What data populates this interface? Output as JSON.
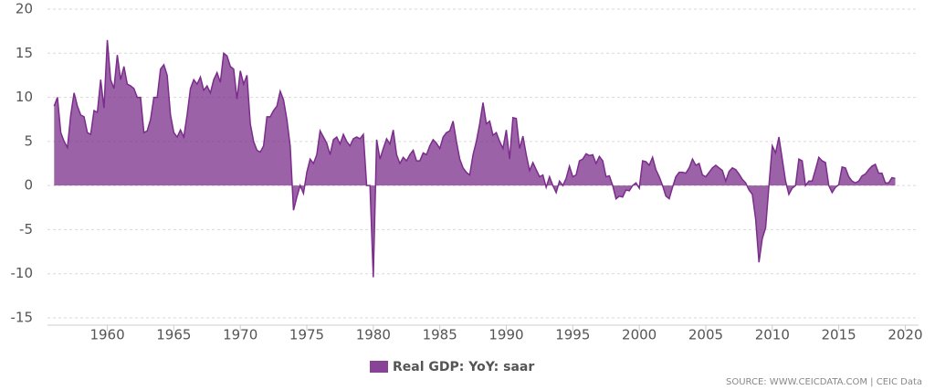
{
  "chart_data": {
    "type": "area",
    "x": [
      1956,
      1956.25,
      1956.5,
      1956.75,
      1957,
      1957.25,
      1957.5,
      1957.75,
      1958,
      1958.25,
      1958.5,
      1958.75,
      1959,
      1959.25,
      1959.5,
      1959.75,
      1960,
      1960.25,
      1960.5,
      1960.75,
      1961,
      1961.25,
      1961.5,
      1961.75,
      1962,
      1962.25,
      1962.5,
      1962.75,
      1963,
      1963.25,
      1963.5,
      1963.75,
      1964,
      1964.25,
      1964.5,
      1964.75,
      1965,
      1965.25,
      1965.5,
      1965.75,
      1966,
      1966.25,
      1966.5,
      1966.75,
      1967,
      1967.25,
      1967.5,
      1967.75,
      1968,
      1968.25,
      1968.5,
      1968.75,
      1969,
      1969.25,
      1969.5,
      1969.75,
      1970,
      1970.25,
      1970.5,
      1970.75,
      1971,
      1971.25,
      1971.5,
      1971.75,
      1972,
      1972.25,
      1972.5,
      1972.75,
      1973,
      1973.25,
      1973.5,
      1973.75,
      1974,
      1974.25,
      1974.5,
      1974.75,
      1975,
      1975.25,
      1975.5,
      1975.75,
      1976,
      1976.25,
      1976.5,
      1976.75,
      1977,
      1977.25,
      1977.5,
      1977.75,
      1978,
      1978.25,
      1978.5,
      1978.75,
      1979,
      1979.25,
      1979.5,
      1979.75,
      1980,
      1980.25,
      1980.5,
      1980.75,
      1981,
      1981.25,
      1981.5,
      1981.75,
      1982,
      1982.25,
      1982.5,
      1982.75,
      1983,
      1983.25,
      1983.5,
      1983.75,
      1984,
      1984.25,
      1984.5,
      1984.75,
      1985,
      1985.25,
      1985.5,
      1985.75,
      1986,
      1986.25,
      1986.5,
      1986.75,
      1987,
      1987.25,
      1987.5,
      1987.75,
      1988,
      1988.25,
      1988.5,
      1988.75,
      1989,
      1989.25,
      1989.5,
      1989.75,
      1990,
      1990.25,
      1990.5,
      1990.75,
      1991,
      1991.25,
      1991.5,
      1991.75,
      1992,
      1992.25,
      1992.5,
      1992.75,
      1993,
      1993.25,
      1993.5,
      1993.75,
      1994,
      1994.25,
      1994.5,
      1994.75,
      1995,
      1995.25,
      1995.5,
      1995.75,
      1996,
      1996.25,
      1996.5,
      1996.75,
      1997,
      1997.25,
      1997.5,
      1997.75,
      1998,
      1998.25,
      1998.5,
      1998.75,
      1999,
      1999.25,
      1999.5,
      1999.75,
      2000,
      2000.25,
      2000.5,
      2000.75,
      2001,
      2001.25,
      2001.5,
      2001.75,
      2002,
      2002.25,
      2002.5,
      2002.75,
      2003,
      2003.25,
      2003.5,
      2003.75,
      2004,
      2004.25,
      2004.5,
      2004.75,
      2005,
      2005.25,
      2005.5,
      2005.75,
      2006,
      2006.25,
      2006.5,
      2006.75,
      2007,
      2007.25,
      2007.5,
      2007.75,
      2008,
      2008.25,
      2008.5,
      2008.75,
      2009,
      2009.25,
      2009.5,
      2009.75,
      2010,
      2010.25,
      2010.5,
      2010.75,
      2011,
      2011.25,
      2011.5,
      2011.75,
      2012,
      2012.25,
      2012.5,
      2012.75,
      2013,
      2013.25,
      2013.5,
      2013.75,
      2014,
      2014.25,
      2014.5,
      2014.75,
      2015,
      2015.25,
      2015.5,
      2015.75,
      2016,
      2016.25,
      2016.5,
      2016.75,
      2017,
      2017.25,
      2017.5,
      2017.75,
      2018,
      2018.25,
      2018.5,
      2018.75,
      2019,
      2019.25
    ],
    "series": [
      {
        "name": "Real GDP: YoY: saar",
        "color": "#7b2d8b",
        "values": [
          9,
          10,
          6,
          5,
          4.3,
          8,
          10.5,
          9,
          8,
          7.8,
          6,
          5.8,
          8.5,
          8.3,
          12,
          8.8,
          16.5,
          12,
          11,
          14.8,
          12,
          13.5,
          11.5,
          11.3,
          11,
          10,
          10,
          6,
          6.2,
          7.5,
          10,
          10,
          13.2,
          13.7,
          12.5,
          8,
          6,
          5.5,
          6.3,
          5.5,
          8,
          11,
          12,
          11.5,
          12.3,
          10.8,
          11.3,
          10.5,
          12,
          12.8,
          11.7,
          15,
          14.7,
          13.5,
          13.2,
          9.8,
          13,
          11.5,
          12.5,
          7,
          5,
          4,
          3.8,
          4.5,
          7.8,
          7.8,
          8.5,
          9,
          10.7,
          9.7,
          7.5,
          4.5,
          -2.8,
          -1.3,
          0,
          -0.9,
          1.5,
          3,
          2.5,
          3.5,
          6.2,
          5.5,
          4.8,
          3.5,
          5.2,
          5.5,
          4.7,
          5.8,
          5,
          4.5,
          5.3,
          5.5,
          5.3,
          5.8,
          0,
          0,
          -10.4,
          5.2,
          3,
          4.2,
          5.3,
          4.7,
          6.3,
          3.5,
          2.5,
          3.2,
          2.8,
          3.5,
          4,
          2.8,
          2.8,
          3.7,
          3.5,
          4.5,
          5.2,
          4.8,
          4.2,
          5.5,
          6,
          6.2,
          7.3,
          5,
          3,
          2,
          1.5,
          1.2,
          3.5,
          5,
          7,
          9.4,
          7,
          7.3,
          5.7,
          6,
          5,
          4.2,
          6.3,
          3,
          7.7,
          7.6,
          4.2,
          5.6,
          3.5,
          1.7,
          2.6,
          1.8,
          1,
          1.2,
          -0.2,
          1,
          0,
          -0.8,
          0.5,
          0,
          0.8,
          2.2,
          1,
          1.2,
          2.8,
          3,
          3.6,
          3.4,
          3.5,
          2.5,
          3.3,
          2.8,
          1,
          1.1,
          0,
          -1.5,
          -1.2,
          -1.3,
          -0.5,
          -0.6,
          0,
          0.3,
          -0.3,
          2.8,
          2.7,
          2.3,
          3.2,
          1.8,
          1,
          0,
          -1.2,
          -1.5,
          -0.2,
          1,
          1.5,
          1.5,
          1.4,
          2,
          3,
          2.3,
          2.5,
          1.2,
          1,
          1.5,
          2,
          2.3,
          2,
          1.7,
          0.5,
          1.6,
          2,
          1.8,
          1.3,
          0.7,
          0.3,
          -0.5,
          -1,
          -3.8,
          -8.7,
          -6,
          -4.8,
          0,
          4.5,
          3.7,
          5.5,
          3,
          0.5,
          -1,
          -0.3,
          0,
          3,
          2.8,
          0,
          0.5,
          0.5,
          1.8,
          3.2,
          2.8,
          2.6,
          0,
          -0.8,
          -0.2,
          0.1,
          2.1,
          2,
          1,
          0.5,
          0.3,
          0.5,
          1.1,
          1.3,
          1.8,
          2.2,
          2.4,
          1.4,
          1.4,
          0.3,
          0.3,
          0.9,
          0.8
        ]
      }
    ],
    "xlim": [
      1955.5,
      2021
    ],
    "xticks": [
      1960,
      1965,
      1970,
      1975,
      1980,
      1985,
      1990,
      1995,
      2000,
      2005,
      2010,
      2015,
      2020
    ],
    "ylim": [
      -15,
      20
    ],
    "yticks": [
      -15,
      -10,
      -5,
      0,
      5,
      10,
      15,
      20
    ],
    "grid": true,
    "source": "SOURCE: WWW.CEICDATA.COM | CEIC Data"
  }
}
